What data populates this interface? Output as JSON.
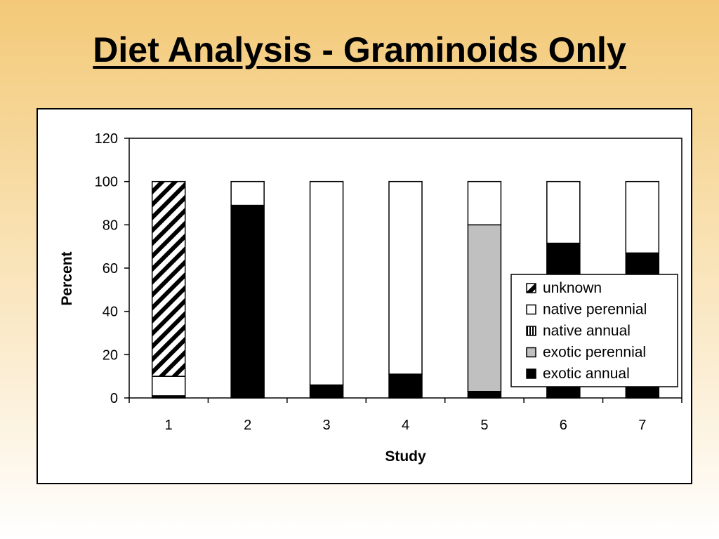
{
  "slide": {
    "title": "Diet Analysis - Graminoids Only"
  },
  "chart_data": {
    "type": "bar",
    "stacked": true,
    "categories": [
      "1",
      "2",
      "3",
      "4",
      "5",
      "6",
      "7"
    ],
    "xlabel": "Study",
    "ylabel": "Percent",
    "ylim": [
      0,
      120
    ],
    "yticks": [
      0,
      20,
      40,
      60,
      80,
      100,
      120
    ],
    "grid": false,
    "legend_position": "right",
    "series": [
      {
        "name": "exotic annual",
        "values": [
          1,
          89,
          6,
          11,
          3,
          71.5,
          67
        ],
        "fill": "#000000"
      },
      {
        "name": "exotic perennial",
        "values": [
          0,
          0,
          0,
          0,
          77,
          0,
          0
        ],
        "fill": "#c0c0c0"
      },
      {
        "name": "native annual",
        "values": [
          0,
          0,
          0,
          0,
          0,
          0,
          0
        ],
        "fill": "vertical-stripes"
      },
      {
        "name": "native perennial",
        "values": [
          9,
          11,
          94,
          89,
          20,
          28.5,
          33
        ],
        "fill": "#ffffff"
      },
      {
        "name": "unknown",
        "values": [
          90,
          0,
          0,
          0,
          0,
          0,
          0
        ],
        "fill": "diagonal-hatch"
      }
    ],
    "legend_order": [
      "unknown",
      "native perennial",
      "native annual",
      "exotic perennial",
      "exotic annual"
    ]
  }
}
